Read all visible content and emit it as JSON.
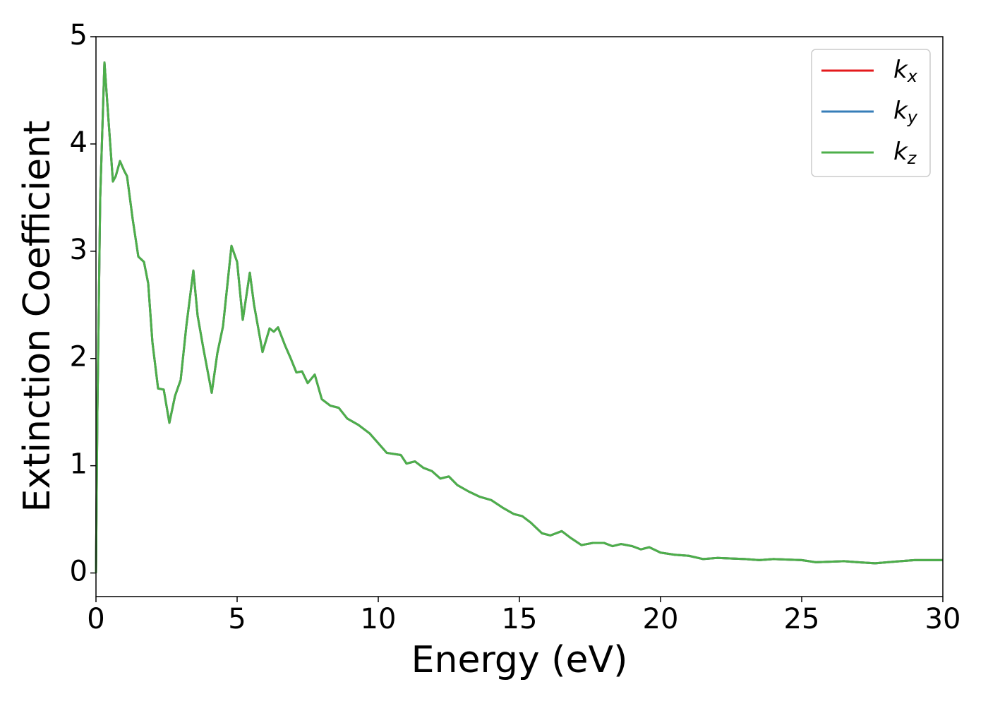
{
  "chart_data": {
    "type": "line",
    "xlabel": "Energy (eV)",
    "ylabel": "Extinction Coefficient",
    "x": [
      0,
      0.05,
      0.15,
      0.3,
      0.45,
      0.6,
      0.7,
      0.85,
      1.0,
      1.1,
      1.3,
      1.5,
      1.7,
      1.85,
      2.0,
      2.2,
      2.4,
      2.6,
      2.8,
      3.0,
      3.2,
      3.45,
      3.6,
      3.8,
      4.1,
      4.3,
      4.5,
      4.8,
      5.0,
      5.2,
      5.45,
      5.6,
      5.9,
      6.15,
      6.3,
      6.45,
      6.7,
      6.9,
      7.1,
      7.3,
      7.5,
      7.75,
      8.0,
      8.3,
      8.6,
      8.9,
      9.3,
      9.7,
      10.0,
      10.3,
      10.8,
      11.0,
      11.3,
      11.6,
      11.9,
      12.2,
      12.5,
      12.8,
      13.2,
      13.6,
      14.0,
      14.4,
      14.8,
      15.1,
      15.4,
      15.8,
      16.1,
      16.5,
      16.8,
      17.2,
      17.6,
      18.0,
      18.3,
      18.6,
      19.0,
      19.3,
      19.6,
      20.0,
      20.5,
      21.0,
      21.5,
      22.0,
      23.0,
      23.5,
      24.0,
      25.0,
      25.5,
      26.5,
      27.0,
      27.6,
      28.5,
      29.0,
      30.0
    ],
    "series": [
      {
        "name": "kx",
        "color": "#e41a1c",
        "values": [
          0,
          1.5,
          3.5,
          4.76,
          4.2,
          3.65,
          3.7,
          3.84,
          3.75,
          3.7,
          3.3,
          2.95,
          2.9,
          2.7,
          2.15,
          1.72,
          1.71,
          1.4,
          1.65,
          1.8,
          2.3,
          2.82,
          2.4,
          2.1,
          1.68,
          2.05,
          2.3,
          3.05,
          2.9,
          2.36,
          2.8,
          2.5,
          2.06,
          2.28,
          2.25,
          2.29,
          2.12,
          2.0,
          1.87,
          1.88,
          1.77,
          1.85,
          1.62,
          1.56,
          1.54,
          1.44,
          1.38,
          1.3,
          1.21,
          1.12,
          1.1,
          1.02,
          1.04,
          0.98,
          0.95,
          0.88,
          0.9,
          0.82,
          0.76,
          0.71,
          0.68,
          0.61,
          0.55,
          0.53,
          0.47,
          0.37,
          0.35,
          0.39,
          0.33,
          0.26,
          0.28,
          0.28,
          0.25,
          0.27,
          0.25,
          0.22,
          0.24,
          0.19,
          0.17,
          0.16,
          0.13,
          0.14,
          0.13,
          0.12,
          0.13,
          0.12,
          0.1,
          0.11,
          0.1,
          0.09,
          0.11,
          0.12,
          0.12
        ]
      },
      {
        "name": "ky",
        "color": "#377eb8",
        "values": [
          0,
          1.5,
          3.5,
          4.76,
          4.2,
          3.65,
          3.7,
          3.84,
          3.75,
          3.7,
          3.3,
          2.95,
          2.9,
          2.7,
          2.15,
          1.72,
          1.71,
          1.4,
          1.65,
          1.8,
          2.3,
          2.82,
          2.4,
          2.1,
          1.68,
          2.05,
          2.3,
          3.05,
          2.9,
          2.36,
          2.8,
          2.5,
          2.06,
          2.28,
          2.25,
          2.29,
          2.12,
          2.0,
          1.87,
          1.88,
          1.77,
          1.85,
          1.62,
          1.56,
          1.54,
          1.44,
          1.38,
          1.3,
          1.21,
          1.12,
          1.1,
          1.02,
          1.04,
          0.98,
          0.95,
          0.88,
          0.9,
          0.82,
          0.76,
          0.71,
          0.68,
          0.61,
          0.55,
          0.53,
          0.47,
          0.37,
          0.35,
          0.39,
          0.33,
          0.26,
          0.28,
          0.28,
          0.25,
          0.27,
          0.25,
          0.22,
          0.24,
          0.19,
          0.17,
          0.16,
          0.13,
          0.14,
          0.13,
          0.12,
          0.13,
          0.12,
          0.1,
          0.11,
          0.1,
          0.09,
          0.11,
          0.12,
          0.12
        ]
      },
      {
        "name": "kz",
        "color": "#4daf4a",
        "values": [
          0,
          1.5,
          3.5,
          4.76,
          4.2,
          3.65,
          3.7,
          3.84,
          3.75,
          3.7,
          3.3,
          2.95,
          2.9,
          2.7,
          2.15,
          1.72,
          1.71,
          1.4,
          1.65,
          1.8,
          2.3,
          2.82,
          2.4,
          2.1,
          1.68,
          2.05,
          2.3,
          3.05,
          2.9,
          2.36,
          2.8,
          2.5,
          2.06,
          2.28,
          2.25,
          2.29,
          2.12,
          2.0,
          1.87,
          1.88,
          1.77,
          1.85,
          1.62,
          1.56,
          1.54,
          1.44,
          1.38,
          1.3,
          1.21,
          1.12,
          1.1,
          1.02,
          1.04,
          0.98,
          0.95,
          0.88,
          0.9,
          0.82,
          0.76,
          0.71,
          0.68,
          0.61,
          0.55,
          0.53,
          0.47,
          0.37,
          0.35,
          0.39,
          0.33,
          0.26,
          0.28,
          0.28,
          0.25,
          0.27,
          0.25,
          0.22,
          0.24,
          0.19,
          0.17,
          0.16,
          0.13,
          0.14,
          0.13,
          0.12,
          0.13,
          0.12,
          0.1,
          0.11,
          0.1,
          0.09,
          0.11,
          0.12,
          0.12
        ]
      }
    ],
    "xlim": [
      0,
      30
    ],
    "xticks": [
      0,
      5,
      10,
      15,
      20,
      25,
      30
    ],
    "ylim": [
      -0.22,
      5
    ],
    "yticks": [
      0,
      1,
      2,
      3,
      4,
      5
    ],
    "grid": false,
    "legend": "upper right"
  }
}
